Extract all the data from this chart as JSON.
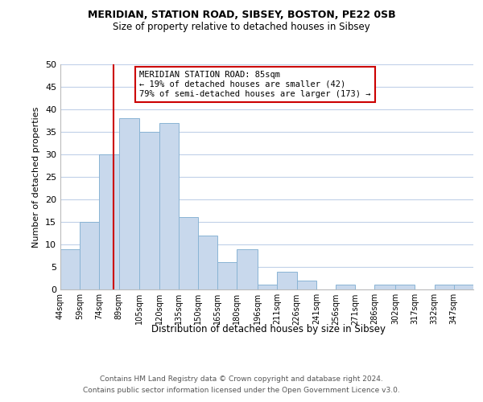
{
  "title1": "MERIDIAN, STATION ROAD, SIBSEY, BOSTON, PE22 0SB",
  "title2": "Size of property relative to detached houses in Sibsey",
  "xlabel": "Distribution of detached houses by size in Sibsey",
  "ylabel": "Number of detached properties",
  "bin_labels": [
    "44sqm",
    "59sqm",
    "74sqm",
    "89sqm",
    "105sqm",
    "120sqm",
    "135sqm",
    "150sqm",
    "165sqm",
    "180sqm",
    "196sqm",
    "211sqm",
    "226sqm",
    "241sqm",
    "256sqm",
    "271sqm",
    "286sqm",
    "302sqm",
    "317sqm",
    "332sqm",
    "347sqm"
  ],
  "bin_edges": [
    44,
    59,
    74,
    89,
    105,
    120,
    135,
    150,
    165,
    180,
    196,
    211,
    226,
    241,
    256,
    271,
    286,
    302,
    317,
    332,
    347,
    362
  ],
  "bar_heights": [
    9,
    15,
    30,
    38,
    35,
    37,
    16,
    12,
    6,
    9,
    1,
    4,
    2,
    0,
    1,
    0,
    1,
    1,
    0,
    1,
    1
  ],
  "bar_color": "#c8d8ec",
  "bar_edgecolor": "#8ab4d4",
  "property_size": 85,
  "property_line_color": "#cc0000",
  "annotation_line1": "MERIDIAN STATION ROAD: 85sqm",
  "annotation_line2": "← 19% of detached houses are smaller (42)",
  "annotation_line3": "79% of semi-detached houses are larger (173) →",
  "annotation_box_edgecolor": "#cc0000",
  "annotation_box_facecolor": "#ffffff",
  "ylim": [
    0,
    50
  ],
  "yticks": [
    0,
    5,
    10,
    15,
    20,
    25,
    30,
    35,
    40,
    45,
    50
  ],
  "footer1": "Contains HM Land Registry data © Crown copyright and database right 2024.",
  "footer2": "Contains public sector information licensed under the Open Government Licence v3.0.",
  "background_color": "#ffffff",
  "grid_color": "#c0d0e8"
}
